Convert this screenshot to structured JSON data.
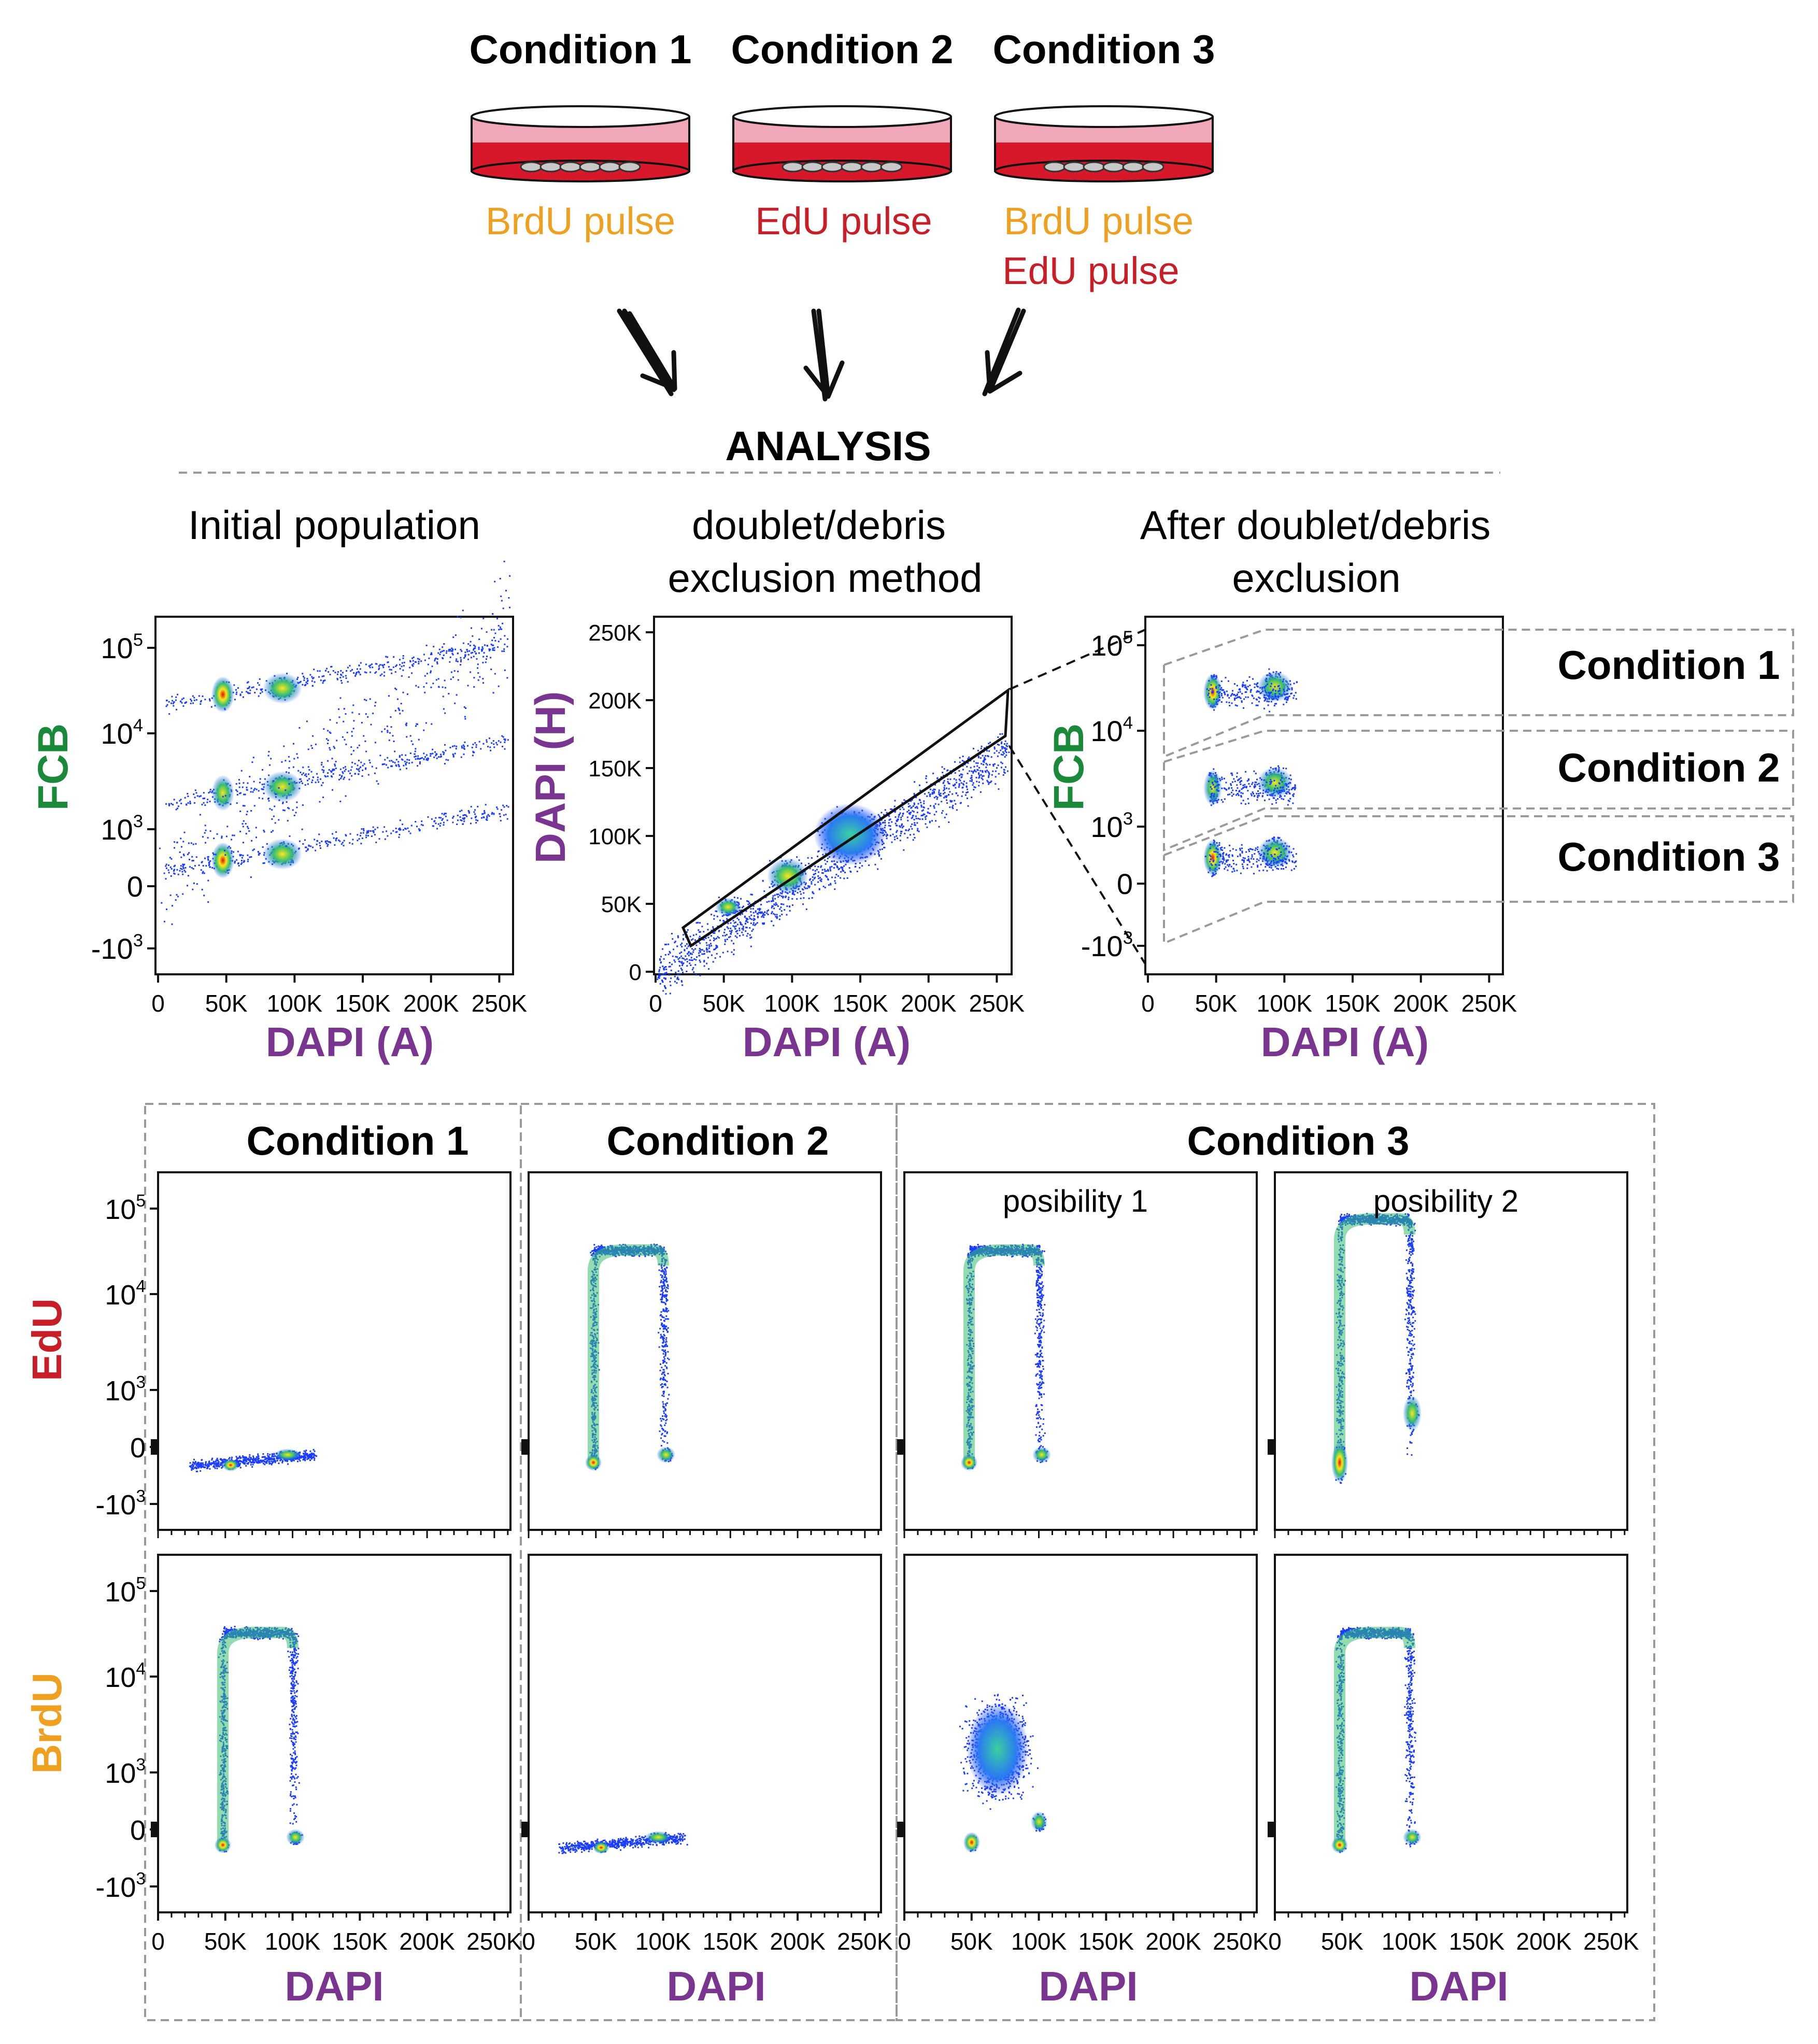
{
  "colors": {
    "green": "#1a8a3a",
    "purple": "#7a3590",
    "red": "#c81e28",
    "orange": "#f0a020",
    "dish_red": "#d7182a",
    "dish_pink": "#f0a8b8",
    "black": "#111111",
    "dash_gray": "#9a9a9a"
  },
  "experiment": {
    "conditions": [
      {
        "title": "Condition 1",
        "pulses": [
          {
            "text": "BrdU pulse",
            "color": "orange"
          }
        ]
      },
      {
        "title": "Condition 2",
        "pulses": [
          {
            "text": "EdU pulse",
            "color": "red"
          }
        ]
      },
      {
        "title": "Condition 3",
        "pulses": [
          {
            "text": "BrdU pulse",
            "color": "orange"
          },
          {
            "text": "EdU pulse",
            "color": "red"
          }
        ]
      }
    ],
    "analysis_label": "ANALYSIS"
  },
  "gating": {
    "panel1": {
      "title": "Initial population",
      "xlabel": "DAPI (A)",
      "ylabel": "FCB"
    },
    "panel2": {
      "title_line1": "doublet/debris",
      "title_line2": "exclusion method",
      "xlabel": "DAPI (A)",
      "ylabel": "DAPI (H)"
    },
    "panel3": {
      "title_line1": "After doublet/debris",
      "title_line2": "exclusion",
      "xlabel": "DAPI (A)",
      "ylabel": "FCB"
    },
    "gate_labels": [
      "Condition 1",
      "Condition 2",
      "Condition 3"
    ]
  },
  "axes": {
    "x_ticks": [
      "0",
      "50K",
      "100K",
      "150K",
      "200K",
      "250K"
    ],
    "log_ticks": [
      {
        "base": "10",
        "exp": "5"
      },
      {
        "base": "10",
        "exp": "4"
      },
      {
        "base": "10",
        "exp": "3"
      },
      {
        "base": "0",
        "exp": ""
      },
      {
        "base": "-10",
        "exp": "3"
      }
    ],
    "y_ticks_linear": [
      "250K",
      "200K",
      "150K",
      "100K",
      "50K",
      "0"
    ]
  },
  "results": {
    "groups": [
      {
        "title": "Condition 1"
      },
      {
        "title": "Condition 2"
      },
      {
        "title": "Condition 3"
      }
    ],
    "subtitles": [
      "posibility 1",
      "posibility 2"
    ],
    "row_labels": [
      "EdU",
      "BrdU"
    ],
    "xlabel": "DAPI"
  },
  "chart_data": [
    {
      "type": "scatter",
      "title": "Initial population",
      "xlabel": "DAPI (A)",
      "ylabel": "FCB",
      "xlim": [
        0,
        262144
      ],
      "yscale": "biexponential",
      "clusters": [
        {
          "x": 50000,
          "y": 30000
        },
        {
          "x": 95000,
          "y": 45000
        },
        {
          "x": 50000,
          "y": 2000
        },
        {
          "x": 95000,
          "y": 3000
        },
        {
          "x": 50000,
          "y": 500
        },
        {
          "x": 95000,
          "y": 900
        }
      ]
    },
    {
      "type": "scatter",
      "title": "doublet/debris exclusion method",
      "xlabel": "DAPI (A)",
      "ylabel": "DAPI (H)",
      "xlim": [
        0,
        262144
      ],
      "ylim": [
        0,
        262144
      ],
      "gate": "singlets diagonal"
    },
    {
      "type": "scatter",
      "title": "After doublet/debris exclusion",
      "xlabel": "DAPI (A)",
      "ylabel": "FCB",
      "xlim": [
        0,
        262144
      ],
      "gates": [
        "Condition 1",
        "Condition 2",
        "Condition 3"
      ]
    },
    {
      "type": "scatter",
      "title": "Condition 1",
      "ylabel": "EdU",
      "xlabel": "DAPI",
      "pattern": "flat G1-G2"
    },
    {
      "type": "scatter",
      "title": "Condition 2",
      "ylabel": "EdU",
      "xlabel": "DAPI",
      "pattern": "S-phase arch"
    },
    {
      "type": "scatter",
      "title": "Condition 3 posibility 1",
      "ylabel": "EdU",
      "xlabel": "DAPI",
      "pattern": "S-phase arch"
    },
    {
      "type": "scatter",
      "title": "Condition 3 posibility 2",
      "ylabel": "EdU",
      "xlabel": "DAPI",
      "pattern": "S-phase arch, high"
    },
    {
      "type": "scatter",
      "title": "Condition 1",
      "ylabel": "BrdU",
      "xlabel": "DAPI",
      "pattern": "S-phase arch"
    },
    {
      "type": "scatter",
      "title": "Condition 2",
      "ylabel": "BrdU",
      "xlabel": "DAPI",
      "pattern": "flat G1-G2"
    },
    {
      "type": "scatter",
      "title": "Condition 3 posibility 1",
      "ylabel": "BrdU",
      "xlabel": "DAPI",
      "pattern": "diffuse S-phase"
    },
    {
      "type": "scatter",
      "title": "Condition 3 posibility 2",
      "ylabel": "BrdU",
      "xlabel": "DAPI",
      "pattern": "S-phase arch"
    }
  ]
}
